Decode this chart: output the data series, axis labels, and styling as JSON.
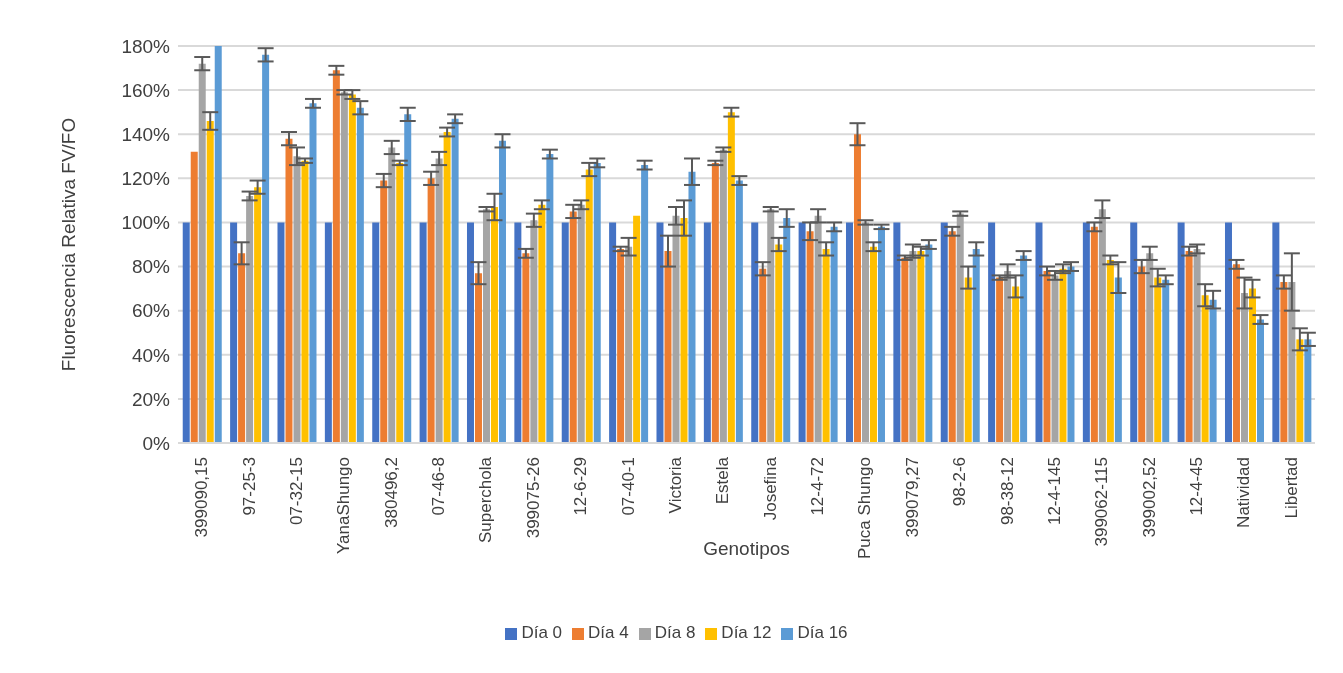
{
  "chart_data": {
    "type": "bar",
    "xlabel": "Genotipos",
    "ylabel": "Fluorescencia Relativa FV/FO",
    "categories": [
      "399090,15",
      "97-25-3",
      "07-32-15",
      "YanaShungo",
      "380496,2",
      "07-46-8",
      "Superchola",
      "399075-26",
      "12-6-29",
      "07-40-1",
      "Victoria",
      "Estela",
      "Josefina",
      "12-4-72",
      "Puca Shungo",
      "399079,27",
      "98-2-6",
      "98-38-12",
      "12-4-145",
      "399062-115",
      "399002,52",
      "12-4-45",
      "Natividad",
      "Libertad"
    ],
    "series": [
      {
        "name": "Día 0",
        "color": "#4472c4",
        "values": [
          100,
          100,
          100,
          100,
          100,
          100,
          100,
          100,
          100,
          100,
          100,
          100,
          100,
          100,
          100,
          100,
          100,
          100,
          100,
          100,
          100,
          100,
          100,
          100
        ],
        "errors": [
          0,
          0,
          0,
          0,
          0,
          0,
          0,
          0,
          0,
          0,
          0,
          0,
          0,
          0,
          0,
          0,
          0,
          0,
          0,
          0,
          0,
          0,
          0,
          0
        ]
      },
      {
        "name": "Día 4",
        "color": "#ed7d31",
        "values": [
          132,
          86,
          138,
          169,
          119,
          120,
          77,
          86,
          105,
          88,
          87,
          127,
          79,
          96,
          140,
          84,
          96,
          75,
          78,
          98,
          80,
          87,
          81,
          73
        ],
        "errors": [
          0,
          5,
          3,
          2,
          3,
          3,
          5,
          2,
          3,
          1,
          7,
          1,
          3,
          4,
          5,
          1,
          2,
          1,
          2,
          2,
          3,
          2,
          2,
          3
        ]
      },
      {
        "name": "Día 8",
        "color": "#a5a5a5",
        "values": [
          172,
          112,
          130,
          159,
          134,
          129,
          106,
          101,
          108,
          89,
          103,
          133,
          106,
          103,
          100,
          87,
          104,
          78,
          76,
          106,
          86,
          88,
          68,
          73
        ],
        "errors": [
          3,
          2,
          4,
          1,
          3,
          3,
          1,
          3,
          2,
          4,
          4,
          1,
          1,
          3,
          1,
          3,
          1,
          3,
          2,
          4,
          3,
          2,
          7,
          13
        ]
      },
      {
        "name": "Día 12",
        "color": "#ffc000",
        "values": [
          146,
          116,
          128,
          158,
          127,
          141,
          107,
          108,
          124,
          103,
          102,
          150,
          90,
          88,
          89,
          87,
          75,
          71,
          79,
          83,
          75,
          67,
          70,
          47
        ],
        "errors": [
          4,
          3,
          1,
          2,
          1,
          2,
          6,
          2,
          3,
          0,
          8,
          2,
          3,
          3,
          2,
          2,
          5,
          5,
          2,
          2,
          4,
          5,
          4,
          5
        ]
      },
      {
        "name": "Día 16",
        "color": "#5b9bd5",
        "values": [
          180,
          176,
          154,
          152,
          149,
          147,
          137,
          131,
          127,
          126,
          123,
          119,
          102,
          98,
          98,
          90,
          88,
          85,
          80,
          75,
          74,
          65,
          56,
          47
        ],
        "errors": [
          0,
          3,
          2,
          3,
          3,
          2,
          3,
          2,
          2,
          2,
          6,
          2,
          4,
          2,
          1,
          2,
          3,
          2,
          2,
          7,
          2,
          4,
          2,
          3
        ]
      }
    ],
    "ylim": [
      0,
      180
    ],
    "yticks": [
      {
        "value": 0,
        "label": "0%"
      },
      {
        "value": 20,
        "label": "20%"
      },
      {
        "value": 40,
        "label": "40%"
      },
      {
        "value": 60,
        "label": "60%"
      },
      {
        "value": 80,
        "label": "80%"
      },
      {
        "value": 100,
        "label": "100%"
      },
      {
        "value": 120,
        "label": "120%"
      },
      {
        "value": 140,
        "label": "140%"
      },
      {
        "value": 160,
        "label": "160%"
      },
      {
        "value": 180,
        "label": "180%"
      }
    ],
    "grid": "y",
    "legend": "bottom"
  }
}
